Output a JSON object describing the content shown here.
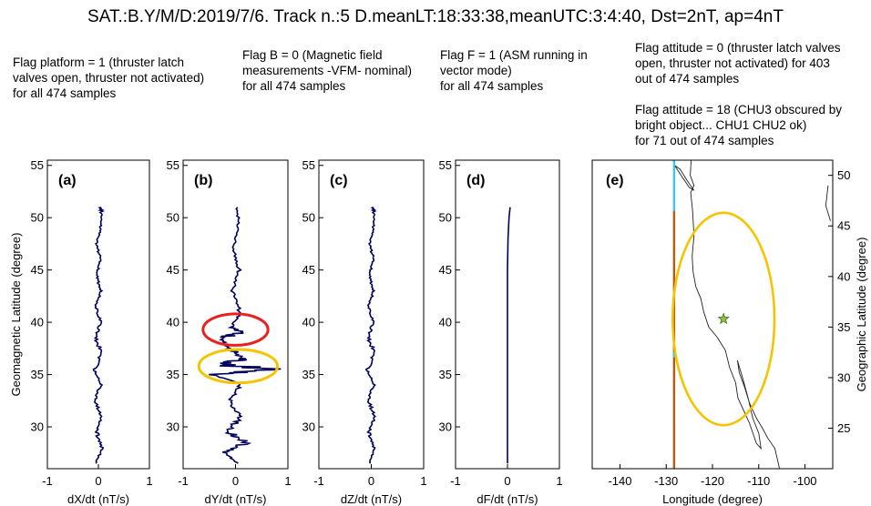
{
  "title": "SAT.:B.Y/M/D:2019/7/6. Track n.:5 D.meanLT:18:33:38,meanUTC:3:4:40, Dst=2nT, ap=4nT",
  "flags": {
    "platform": "Flag platform = 1 (thruster latch\nvalves open, thruster not activated)\nfor all 474 samples",
    "b": "Flag B = 0 (Magnetic field\nmeasurements -VFM- nominal)\nfor all 474 samples",
    "f": "Flag F = 1 (ASM running in\nvector mode)\nfor all 474 samples",
    "attitude0": "Flag attitude = 0 (thruster latch valves\nopen, thruster not activated) for 403\nout of 474 samples",
    "attitude18": "Flag attitude = 18 (CHU3 obscured by\nbright object... CHU1 CHU2 ok)\nfor 71 out of 474 samples"
  },
  "colors": {
    "trace": "#00005c",
    "red_ellipse": "#e8211f",
    "yellow_ellipse": "#f5c400",
    "track_brown": "#b85c0c",
    "track_cyan": "#3cc8e6",
    "star": "#8cc63f",
    "coast": "#222222"
  },
  "chart_data": [
    {
      "panel": "(a)",
      "type": "line",
      "xlabel": "dX/dt (nT/s)",
      "ylabel": "Geomagnetic Latitude (degree)",
      "xlim": [
        -1,
        1
      ],
      "ylim": [
        26,
        55.5
      ],
      "xticks": [
        "-1",
        "0",
        "1"
      ],
      "yticks": [
        "30",
        "35",
        "40",
        "45",
        "50",
        "55"
      ],
      "series": [
        {
          "y": [
            26.5,
            28,
            29.5,
            31,
            32.5,
            34,
            35.5,
            37,
            38.5,
            40,
            41.5,
            43,
            44.5,
            46,
            47.5,
            49,
            50.5,
            51
          ],
          "x": [
            -0.05,
            0.08,
            -0.04,
            0.06,
            -0.07,
            0.05,
            -0.08,
            0.07,
            -0.06,
            0.05,
            -0.05,
            0.06,
            -0.04,
            0.05,
            -0.05,
            0.04,
            0.06,
            0.05
          ]
        }
      ]
    },
    {
      "panel": "(b)",
      "type": "line",
      "xlabel": "dY/dt (nT/s)",
      "xlim": [
        -1,
        1
      ],
      "ylim": [
        26,
        55.5
      ],
      "xticks": [
        "-1",
        "0",
        "1"
      ],
      "yticks": [
        "30",
        "35",
        "40",
        "45",
        "50",
        "55"
      ],
      "series": [
        {
          "y": [
            26.5,
            27.5,
            28.5,
            29.5,
            31,
            32.5,
            34,
            35,
            35.5,
            36,
            36.5,
            37.5,
            38.5,
            39,
            39.5,
            41,
            43,
            45,
            47,
            49,
            51
          ],
          "x": [
            0.05,
            -0.2,
            0.2,
            -0.15,
            0.1,
            -0.12,
            0.1,
            -0.4,
            0.7,
            -0.3,
            0.2,
            -0.1,
            -0.3,
            0.15,
            -0.1,
            0.08,
            -0.06,
            0.07,
            -0.05,
            0.06,
            0.04
          ]
        }
      ],
      "annotations": [
        {
          "shape": "ellipse",
          "color": "red",
          "x": 0,
          "y": 39.3,
          "rx": 0.62,
          "ry": 1.5
        },
        {
          "shape": "ellipse",
          "color": "yellow",
          "x": 0.05,
          "y": 35.8,
          "rx": 0.75,
          "ry": 1.6
        }
      ]
    },
    {
      "panel": "(c)",
      "type": "line",
      "xlabel": "dZ/dt (nT/s)",
      "xlim": [
        -1,
        1
      ],
      "ylim": [
        26,
        55.5
      ],
      "xticks": [
        "-1",
        "0",
        "1"
      ],
      "yticks": [
        "30",
        "35",
        "40",
        "45",
        "50",
        "55"
      ],
      "series": [
        {
          "y": [
            26.5,
            28,
            29.5,
            31,
            32.5,
            34,
            35.5,
            37,
            38.5,
            40,
            41.5,
            43,
            44.5,
            46,
            47.5,
            49,
            50.5,
            51
          ],
          "x": [
            -0.03,
            0.06,
            -0.05,
            0.07,
            -0.06,
            0.05,
            -0.08,
            0.07,
            -0.06,
            0.04,
            -0.05,
            0.05,
            -0.04,
            0.05,
            -0.04,
            0.04,
            0.05,
            0.04
          ]
        }
      ]
    },
    {
      "panel": "(d)",
      "type": "line",
      "xlabel": "dF/dt (nT/s)",
      "xlim": [
        -1,
        1
      ],
      "ylim": [
        26,
        55.5
      ],
      "xticks": [
        "-1",
        "0",
        "1"
      ],
      "yticks": [
        "30",
        "35",
        "40",
        "45",
        "50",
        "55"
      ],
      "series": [
        {
          "y": [
            26.5,
            30,
            35,
            40,
            45,
            48,
            50,
            51
          ],
          "x": [
            0,
            0,
            0,
            0,
            0,
            0.01,
            0.03,
            0.05
          ]
        }
      ]
    },
    {
      "panel": "(e)",
      "type": "map",
      "xlabel": "Longitude (degree)",
      "ylabel": "Geographic Latitude (degree)",
      "xlim": [
        -146,
        -94
      ],
      "ylim": [
        21,
        51.5
      ],
      "xticks": [
        "-140",
        "-130",
        "-120",
        "-110",
        "-100"
      ],
      "yticks": [
        "25",
        "30",
        "35",
        "40",
        "45",
        "50"
      ],
      "track": [
        {
          "flag": "attitude 18",
          "color": "cyan",
          "lon": [
            -128.3,
            -128.3
          ],
          "lat": [
            51.5,
            46.5
          ]
        },
        {
          "flag": "attitude 0",
          "color": "brown",
          "lon": [
            -128.3,
            -128.3
          ],
          "lat": [
            46.5,
            21
          ]
        },
        {
          "flag": "attitude 18",
          "color": "cyan",
          "lon": [
            -128.3,
            -128.3
          ],
          "lat": [
            32.5,
            32
          ]
        }
      ],
      "epicenter": {
        "marker": "star",
        "lon": -117.6,
        "lat": 35.8
      },
      "circle": {
        "color": "yellow",
        "lon": -117.6,
        "lat": 35.8,
        "rlon": 11,
        "rlat": 10.5
      }
    }
  ]
}
